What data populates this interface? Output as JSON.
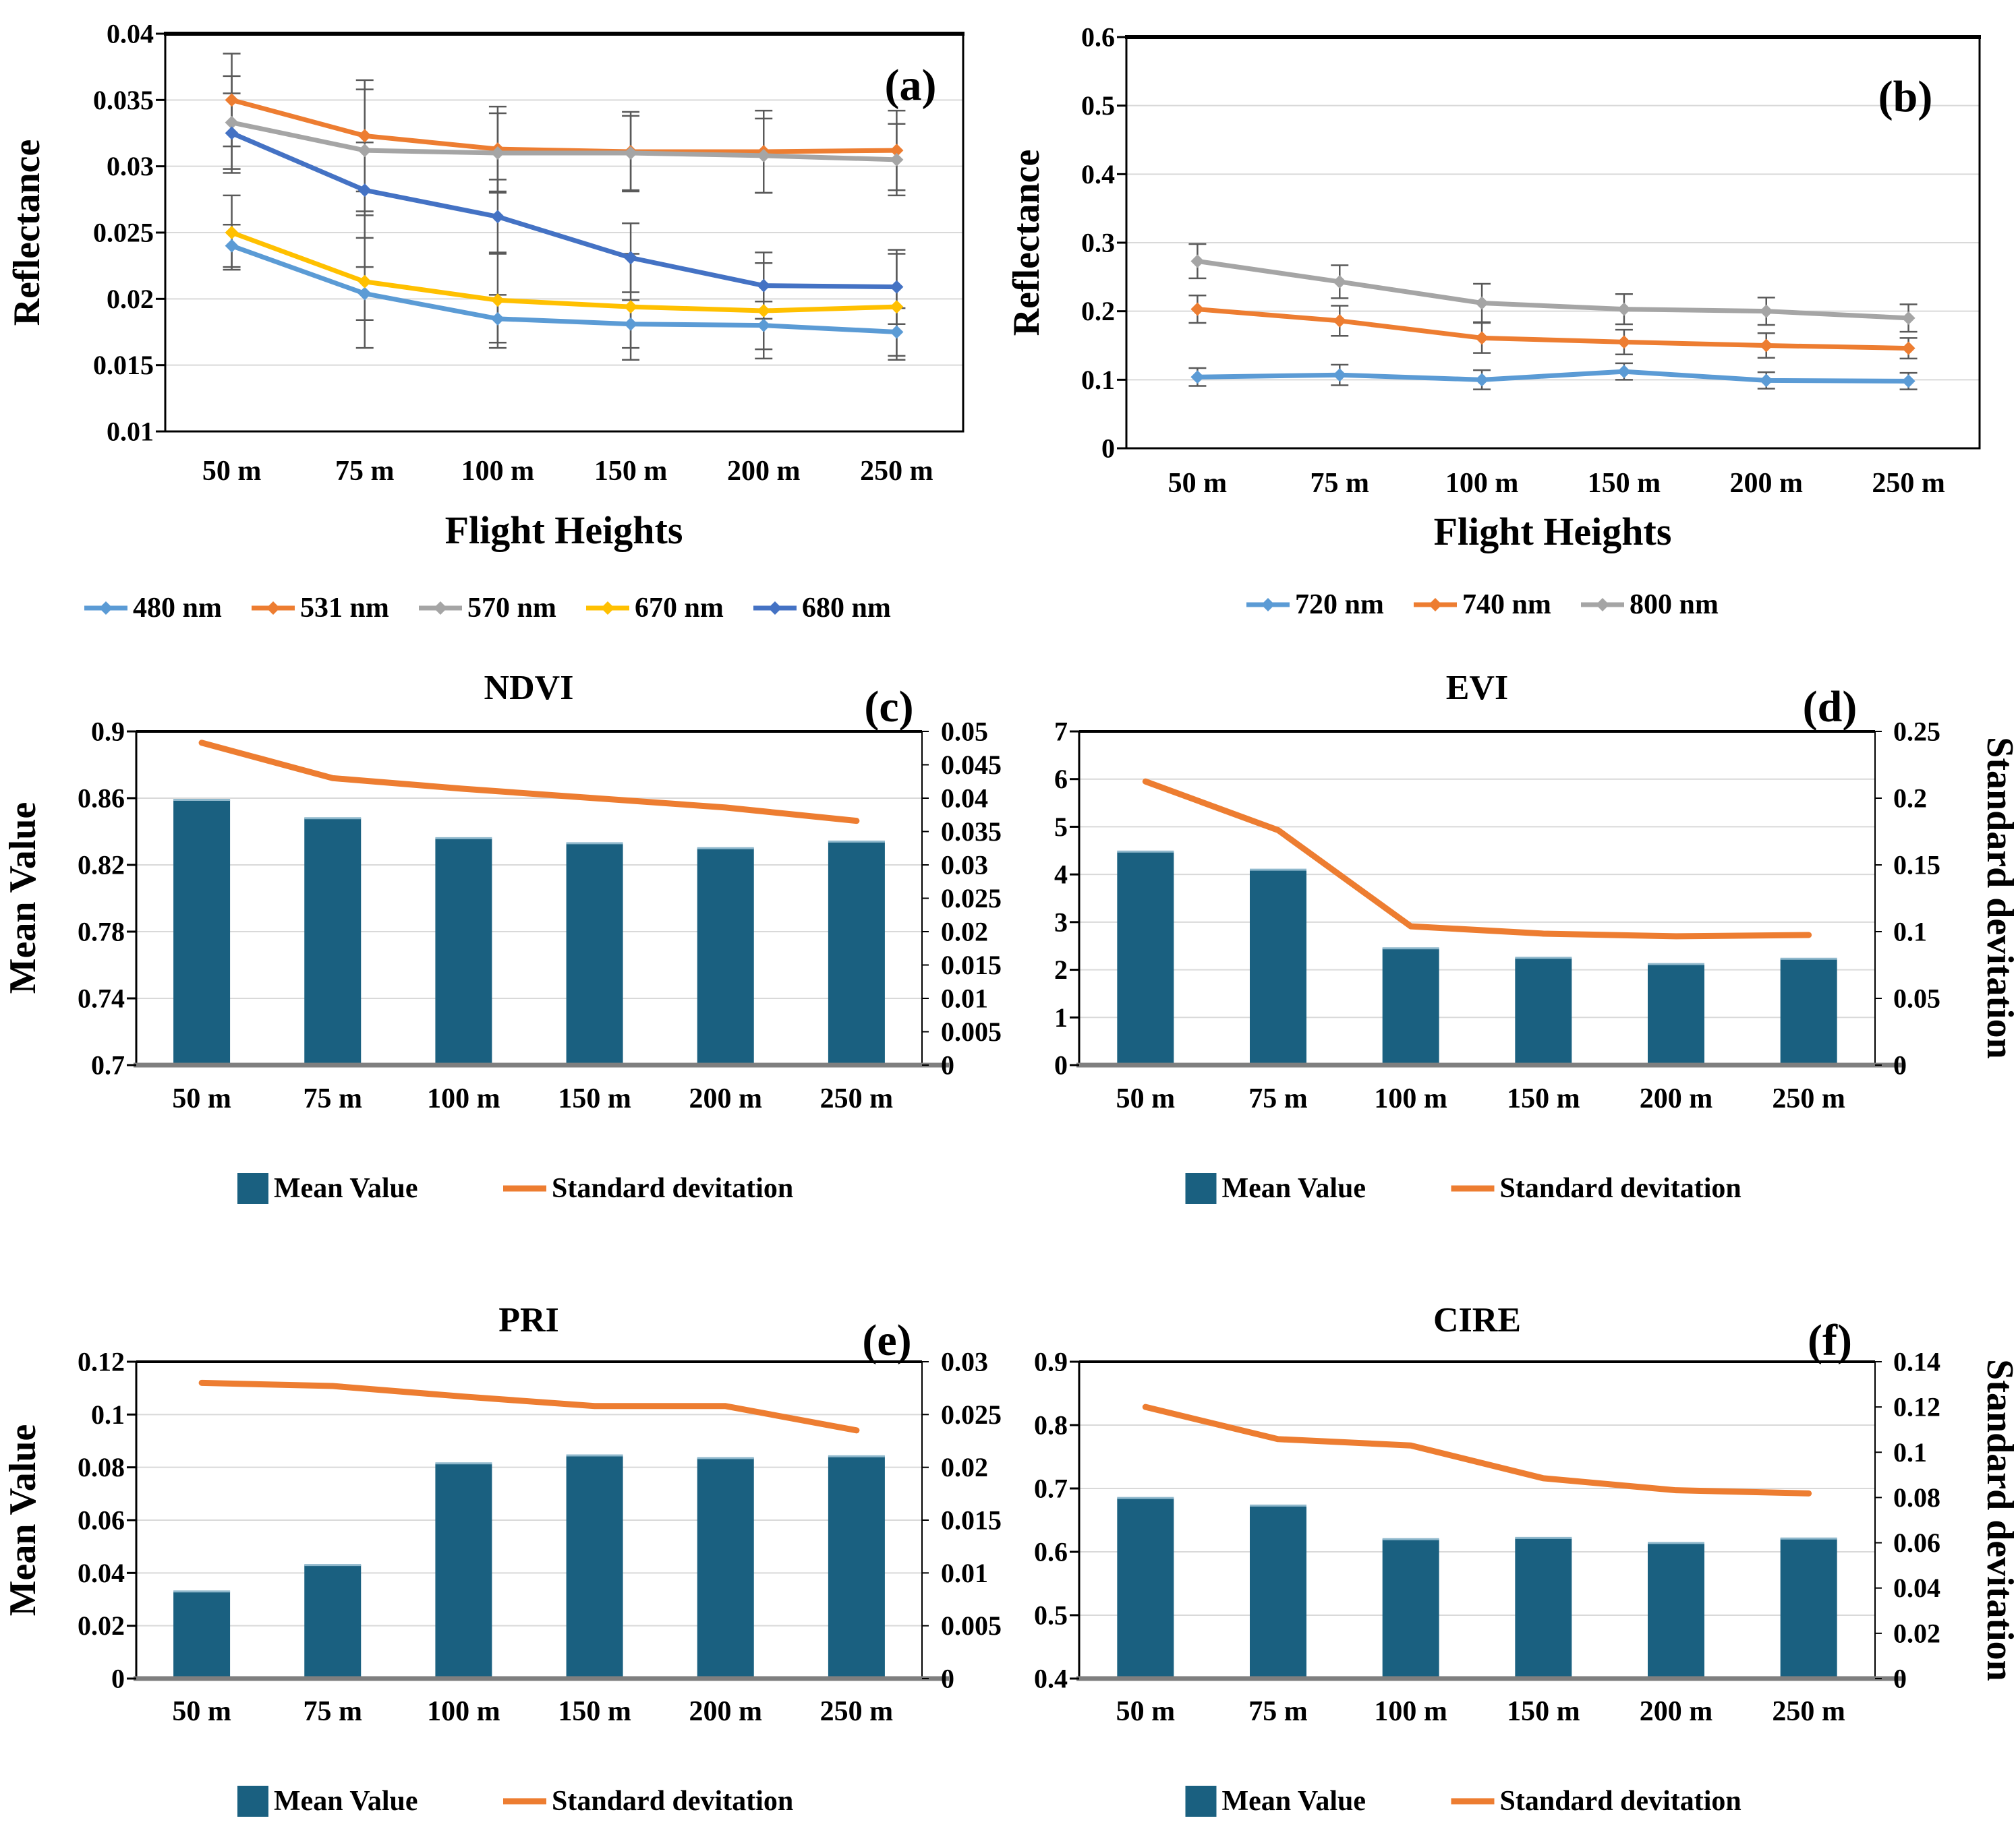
{
  "figure_colors": {
    "bar_fill": "#1A6080",
    "bar_top_cap": "#8FB8CC",
    "accent_line": "#ED7D31",
    "gridline": "#D9D9D9",
    "error_bar": "#595959",
    "axis_black": "#000000",
    "axis_bottom_gray": "#7F7F7F"
  },
  "chart_data": [
    {
      "id": "a",
      "kind": "line",
      "panel_label": "(a)",
      "title": "",
      "y_axis": {
        "label": "Reflectance",
        "min": 0.01,
        "max": 0.04,
        "ticks": [
          "0.01",
          "0.015",
          "0.02",
          "0.025",
          "0.03",
          "0.035",
          "0.04"
        ]
      },
      "x_axis": {
        "label": "Flight Heights",
        "categories": [
          "50 m",
          "75 m",
          "100 m",
          "150 m",
          "200 m",
          "250 m"
        ]
      },
      "grid": true,
      "legend_position": "bottom",
      "series": [
        {
          "name": "480 nm",
          "color": "#5B9BD5",
          "values": [
            0.024,
            0.0204,
            0.0185,
            0.0181,
            0.018,
            0.0175
          ],
          "errors": [
            0.0016,
            0.002,
            0.0018,
            0.0018,
            0.0018,
            0.0018
          ]
        },
        {
          "name": "531 nm",
          "color": "#ED7D31",
          "values": [
            0.035,
            0.0323,
            0.0313,
            0.0311,
            0.0311,
            0.0312
          ],
          "errors": [
            0.0035,
            0.0042,
            0.0032,
            0.003,
            0.0031,
            0.003
          ]
        },
        {
          "name": "570 nm",
          "color": "#A5A5A5",
          "values": [
            0.0333,
            0.0312,
            0.031,
            0.031,
            0.0308,
            0.0305
          ],
          "errors": [
            0.0035,
            0.0046,
            0.003,
            0.0028,
            0.0028,
            0.0027
          ]
        },
        {
          "name": "670 nm",
          "color": "#FFC000",
          "values": [
            0.025,
            0.0213,
            0.0199,
            0.0194,
            0.0191,
            0.0194
          ],
          "errors": [
            0.0028,
            0.005,
            0.0036,
            0.004,
            0.0036,
            0.004
          ]
        },
        {
          "name": "680 nm",
          "color": "#4472C4",
          "values": [
            0.0325,
            0.0282,
            0.0262,
            0.0231,
            0.021,
            0.0209
          ],
          "errors": [
            0.003,
            0.0036,
            0.0028,
            0.0026,
            0.0025,
            0.0028
          ]
        }
      ]
    },
    {
      "id": "b",
      "kind": "line",
      "panel_label": "(b)",
      "title": "",
      "y_axis": {
        "label": "Reflectance",
        "min": 0,
        "max": 0.6,
        "ticks": [
          "0",
          "0.1",
          "0.2",
          "0.3",
          "0.4",
          "0.5",
          "0.6"
        ]
      },
      "x_axis": {
        "label": "Flight Heights",
        "categories": [
          "50 m",
          "75 m",
          "100 m",
          "150 m",
          "200 m",
          "250 m"
        ]
      },
      "grid": true,
      "legend_position": "bottom",
      "series": [
        {
          "name": "720 nm",
          "color": "#5B9BD5",
          "values": [
            0.104,
            0.107,
            0.1,
            0.112,
            0.099,
            0.098
          ],
          "errors": [
            0.013,
            0.015,
            0.014,
            0.012,
            0.012,
            0.012
          ]
        },
        {
          "name": "740 nm",
          "color": "#ED7D31",
          "values": [
            0.203,
            0.186,
            0.161,
            0.155,
            0.15,
            0.146
          ],
          "errors": [
            0.02,
            0.022,
            0.022,
            0.018,
            0.018,
            0.015
          ]
        },
        {
          "name": "800 nm",
          "color": "#A5A5A5",
          "values": [
            0.273,
            0.243,
            0.212,
            0.203,
            0.2,
            0.19
          ],
          "errors": [
            0.025,
            0.024,
            0.028,
            0.022,
            0.02,
            0.02
          ]
        }
      ]
    },
    {
      "id": "c",
      "kind": "combo",
      "panel_label": "(c)",
      "title": "NDVI",
      "left_axis": {
        "label": "Mean Value",
        "min": 0.7,
        "max": 0.9,
        "ticks": [
          "0.7",
          "0.74",
          "0.78",
          "0.82",
          "0.86",
          "0.9"
        ]
      },
      "right_axis": {
        "label": "",
        "min": 0,
        "max": 0.05,
        "ticks": [
          "0",
          "0.005",
          "0.01",
          "0.015",
          "0.02",
          "0.025",
          "0.03",
          "0.035",
          "0.04",
          "0.045",
          "0.05"
        ]
      },
      "x_axis": {
        "categories": [
          "50 m",
          "75 m",
          "100 m",
          "150 m",
          "200 m",
          "250 m"
        ]
      },
      "bar_series": {
        "name": "Mean Value",
        "values": [
          0.859,
          0.848,
          0.836,
          0.833,
          0.83,
          0.834
        ]
      },
      "line_series": {
        "name": "Standard devitation",
        "values": [
          0.0483,
          0.043,
          0.0414,
          0.04,
          0.0386,
          0.0366
        ]
      }
    },
    {
      "id": "d",
      "kind": "combo",
      "panel_label": "(d)",
      "title": "EVI",
      "left_axis": {
        "label": "",
        "min": 0,
        "max": 7,
        "ticks": [
          "0",
          "1",
          "2",
          "3",
          "4",
          "5",
          "6",
          "7"
        ]
      },
      "right_axis": {
        "label": "Standard devitation",
        "min": 0,
        "max": 0.25,
        "ticks": [
          "0",
          "0.05",
          "0.1",
          "0.15",
          "0.2",
          "0.25"
        ]
      },
      "x_axis": {
        "categories": [
          "50 m",
          "75 m",
          "100 m",
          "150 m",
          "200 m",
          "250 m"
        ]
      },
      "bar_series": {
        "name": "Mean Value",
        "values": [
          4.48,
          4.1,
          2.45,
          2.25,
          2.12,
          2.23
        ]
      },
      "line_series": {
        "name": "Standard devitation",
        "values": [
          0.2125,
          0.176,
          0.104,
          0.0985,
          0.0965,
          0.0975
        ]
      }
    },
    {
      "id": "e",
      "kind": "combo",
      "panel_label": "(e)",
      "title": "PRI",
      "left_axis": {
        "label": "Mean Value",
        "min": 0,
        "max": 0.12,
        "ticks": [
          "0",
          "0.02",
          "0.04",
          "0.06",
          "0.08",
          "0.1",
          "0.12"
        ]
      },
      "right_axis": {
        "label": "",
        "min": 0,
        "max": 0.03,
        "ticks": [
          "0",
          "0.005",
          "0.01",
          "0.015",
          "0.02",
          "0.025",
          "0.03"
        ]
      },
      "x_axis": {
        "categories": [
          "50 m",
          "75 m",
          "100 m",
          "150 m",
          "200 m",
          "250 m"
        ]
      },
      "bar_series": {
        "name": "Mean Value",
        "values": [
          0.033,
          0.043,
          0.0815,
          0.0845,
          0.0835,
          0.0842
        ]
      },
      "line_series": {
        "name": "Standard devitation",
        "values": [
          0.028,
          0.0277,
          0.0267,
          0.0258,
          0.0258,
          0.0235
        ]
      }
    },
    {
      "id": "f",
      "kind": "combo",
      "panel_label": "(f)",
      "title": "CIRE",
      "left_axis": {
        "label": "",
        "min": 0.4,
        "max": 0.9,
        "ticks": [
          "0.4",
          "0.5",
          "0.6",
          "0.7",
          "0.8",
          "0.9"
        ]
      },
      "right_axis": {
        "label": "Standard devitation",
        "min": 0,
        "max": 0.14,
        "ticks": [
          "0",
          "0.02",
          "0.04",
          "0.06",
          "0.08",
          "0.1",
          "0.12",
          "0.14"
        ]
      },
      "x_axis": {
        "categories": [
          "50 m",
          "75 m",
          "100 m",
          "150 m",
          "200 m",
          "250 m"
        ]
      },
      "bar_series": {
        "name": "Mean Value",
        "values": [
          0.685,
          0.673,
          0.62,
          0.622,
          0.614,
          0.621
        ]
      },
      "line_series": {
        "name": "Standard devitation",
        "values": [
          0.12,
          0.1058,
          0.103,
          0.0885,
          0.0832,
          0.0818
        ]
      }
    }
  ],
  "combo_legend": {
    "bar_label": "Mean Value",
    "line_label": "Standard devitation"
  }
}
